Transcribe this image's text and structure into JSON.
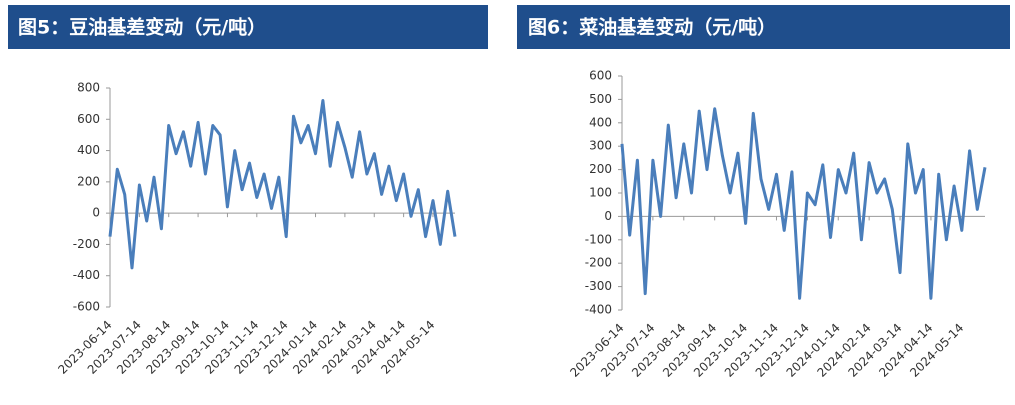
{
  "chart_data": [
    {
      "type": "line",
      "title": "图5：豆油基差变动（元/吨）",
      "categories": [
        "2023-06-14",
        null,
        null,
        null,
        "2023-07-14",
        null,
        null,
        null,
        "2023-08-14",
        null,
        null,
        null,
        "2023-09-14",
        null,
        null,
        null,
        "2023-10-14",
        null,
        null,
        null,
        "2023-11-14",
        null,
        null,
        null,
        "2023-12-14",
        null,
        null,
        null,
        "2024-01-14",
        null,
        null,
        null,
        "2024-02-14",
        null,
        null,
        null,
        "2024-03-14",
        null,
        null,
        null,
        "2024-04-14",
        null,
        null,
        null,
        "2024-05-14",
        null,
        null,
        null
      ],
      "series": [
        {
          "name": "豆油基差",
          "color": "#4a7ebb",
          "values": [
            -150,
            280,
            120,
            -350,
            180,
            -50,
            230,
            -100,
            560,
            380,
            520,
            300,
            580,
            250,
            560,
            500,
            40,
            400,
            150,
            320,
            100,
            250,
            30,
            230,
            -150,
            620,
            450,
            560,
            380,
            720,
            300,
            580,
            420,
            230,
            520,
            250,
            380,
            120,
            300,
            80,
            250,
            -20,
            150,
            -150,
            80,
            -200,
            140,
            -150
          ]
        }
      ],
      "ylim": [
        -600,
        800
      ],
      "yticks": [
        -600,
        -400,
        -200,
        0,
        200,
        400,
        600,
        800
      ]
    },
    {
      "type": "line",
      "title": "图6：菜油基差变动（元/吨）",
      "categories": [
        "2023-06-14",
        null,
        null,
        null,
        "2023-07-14",
        null,
        null,
        null,
        "2023-08-14",
        null,
        null,
        null,
        "2023-09-14",
        null,
        null,
        null,
        "2023-10-14",
        null,
        null,
        null,
        "2023-11-14",
        null,
        null,
        null,
        "2023-12-14",
        null,
        null,
        null,
        "2024-01-14",
        null,
        null,
        null,
        "2024-02-14",
        null,
        null,
        null,
        "2024-03-14",
        null,
        null,
        null,
        "2024-04-14",
        null,
        null,
        null,
        "2024-05-14",
        null,
        null,
        null
      ],
      "series": [
        {
          "name": "菜油基差",
          "color": "#4a7ebb",
          "values": [
            310,
            -80,
            240,
            -330,
            240,
            0,
            390,
            80,
            310,
            100,
            450,
            200,
            460,
            260,
            100,
            270,
            -30,
            440,
            160,
            30,
            180,
            -60,
            190,
            -350,
            100,
            50,
            220,
            -90,
            200,
            100,
            270,
            -100,
            230,
            100,
            160,
            30,
            -240,
            310,
            100,
            200,
            -350,
            180,
            -100,
            130,
            -60,
            280,
            30,
            210
          ]
        }
      ],
      "ylim": [
        -400,
        600
      ],
      "yticks": [
        -400,
        -300,
        -200,
        -100,
        0,
        100,
        200,
        300,
        400,
        500,
        600
      ]
    }
  ]
}
